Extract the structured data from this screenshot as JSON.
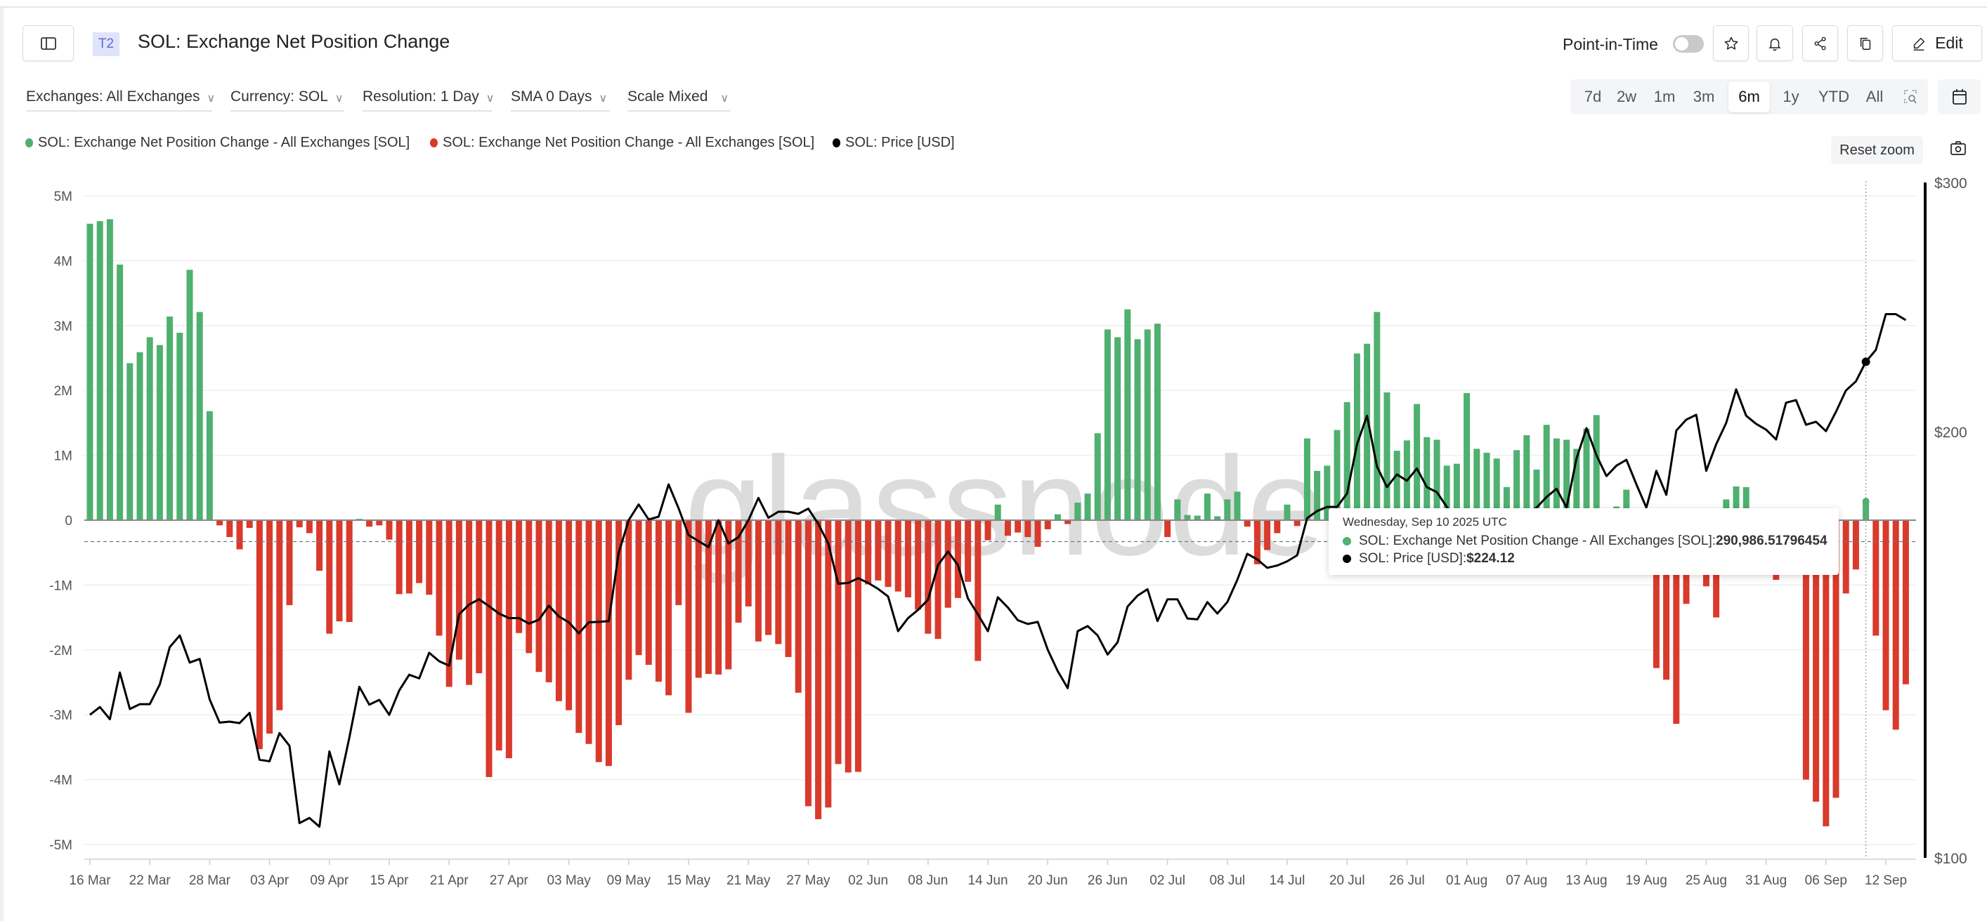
{
  "header": {
    "badge": "T2",
    "title": "SOL: Exchange Net Position Change",
    "point_in_time_label": "Point-in-Time",
    "point_in_time_on": false,
    "edit_label": "Edit",
    "icons": [
      "sidebar-toggle-icon",
      "star-icon",
      "bell-icon",
      "share-icon",
      "copy-icon",
      "pencil-icon"
    ]
  },
  "filters": [
    {
      "label": "Exchanges: All Exchanges"
    },
    {
      "label": "Currency: SOL"
    },
    {
      "label": "Resolution: 1 Day"
    },
    {
      "label": "SMA 0 Days"
    },
    {
      "label": "Scale Mixed"
    }
  ],
  "ranges": {
    "options": [
      "7d",
      "2w",
      "1m",
      "3m",
      "6m",
      "1y",
      "YTD",
      "All"
    ],
    "selected": "6m"
  },
  "reset_zoom_label": "Reset zoom",
  "legend": [
    {
      "label": "SOL: Exchange Net Position Change - All Exchanges [SOL]",
      "color": "#4fb070"
    },
    {
      "label": "SOL: Exchange Net Position Change - All Exchanges [SOL]",
      "color": "#d93a2b"
    },
    {
      "label": "SOL: Price [USD]",
      "color": "#000000"
    }
  ],
  "watermark": "glassnode",
  "tooltip": {
    "date": "Wednesday, Sep 10 2025 UTC",
    "row1_label": "SOL: Exchange Net Position Change - All Exchanges [SOL]: ",
    "row1_value": "290,986.51796454",
    "row2_label": "SOL: Price [USD]: ",
    "row2_value": "$224.12"
  },
  "chart_data": {
    "type": "bar",
    "positive_color": "#4fb070",
    "negative_color": "#d93a2b",
    "line_color": "#000000",
    "grid": true,
    "left_axis": {
      "ticks": [
        5000000,
        4000000,
        3000000,
        2000000,
        1000000,
        0,
        -1000000,
        -2000000,
        -3000000,
        -4000000,
        -5000000
      ],
      "tick_labels": [
        "5M",
        "4M",
        "3M",
        "2M",
        "1M",
        "0",
        "-1M",
        "-2M",
        "-3M",
        "-4M",
        "-5M"
      ],
      "range": [
        -5000000,
        5000000
      ]
    },
    "right_axis": {
      "scale": "log",
      "ticks": [
        300,
        200,
        100
      ],
      "tick_labels": [
        "$300",
        "$200",
        "$100"
      ],
      "range": [
        100,
        300
      ]
    },
    "x_tick_labels": [
      "16 Mar",
      "22 Mar",
      "28 Mar",
      "03 Apr",
      "09 Apr",
      "15 Apr",
      "21 Apr",
      "27 Apr",
      "03 May",
      "09 May",
      "15 May",
      "21 May",
      "27 May",
      "02 Jun",
      "08 Jun",
      "14 Jun",
      "20 Jun",
      "26 Jun",
      "02 Jul",
      "08 Jul",
      "14 Jul",
      "20 Jul",
      "26 Jul",
      "01 Aug",
      "07 Aug",
      "13 Aug",
      "19 Aug",
      "25 Aug",
      "31 Aug",
      "06 Sep",
      "12 Sep"
    ],
    "dashed_reference_value": -330000,
    "highlighted_date": "2025-09-10",
    "dates": [
      "2025-03-16",
      "2025-03-17",
      "2025-03-18",
      "2025-03-19",
      "2025-03-20",
      "2025-03-21",
      "2025-03-22",
      "2025-03-23",
      "2025-03-24",
      "2025-03-25",
      "2025-03-26",
      "2025-03-27",
      "2025-03-28",
      "2025-03-29",
      "2025-03-30",
      "2025-03-31",
      "2025-04-01",
      "2025-04-02",
      "2025-04-03",
      "2025-04-04",
      "2025-04-05",
      "2025-04-06",
      "2025-04-07",
      "2025-04-08",
      "2025-04-09",
      "2025-04-10",
      "2025-04-11",
      "2025-04-12",
      "2025-04-13",
      "2025-04-14",
      "2025-04-15",
      "2025-04-16",
      "2025-04-17",
      "2025-04-18",
      "2025-04-19",
      "2025-04-20",
      "2025-04-21",
      "2025-04-22",
      "2025-04-23",
      "2025-04-24",
      "2025-04-25",
      "2025-04-26",
      "2025-04-27",
      "2025-04-28",
      "2025-04-29",
      "2025-04-30",
      "2025-05-01",
      "2025-05-02",
      "2025-05-03",
      "2025-05-04",
      "2025-05-05",
      "2025-05-06",
      "2025-05-07",
      "2025-05-08",
      "2025-05-09",
      "2025-05-10",
      "2025-05-11",
      "2025-05-12",
      "2025-05-13",
      "2025-05-14",
      "2025-05-15",
      "2025-05-16",
      "2025-05-17",
      "2025-05-18",
      "2025-05-19",
      "2025-05-20",
      "2025-05-21",
      "2025-05-22",
      "2025-05-23",
      "2025-05-24",
      "2025-05-25",
      "2025-05-26",
      "2025-05-27",
      "2025-05-28",
      "2025-05-29",
      "2025-05-30",
      "2025-05-31",
      "2025-06-01",
      "2025-06-02",
      "2025-06-03",
      "2025-06-04",
      "2025-06-05",
      "2025-06-06",
      "2025-06-07",
      "2025-06-08",
      "2025-06-09",
      "2025-06-10",
      "2025-06-11",
      "2025-06-12",
      "2025-06-13",
      "2025-06-14",
      "2025-06-15",
      "2025-06-16",
      "2025-06-17",
      "2025-06-18",
      "2025-06-19",
      "2025-06-20",
      "2025-06-21",
      "2025-06-22",
      "2025-06-23",
      "2025-06-24",
      "2025-06-25",
      "2025-06-26",
      "2025-06-27",
      "2025-06-28",
      "2025-06-29",
      "2025-06-30",
      "2025-07-01",
      "2025-07-02",
      "2025-07-03",
      "2025-07-04",
      "2025-07-05",
      "2025-07-06",
      "2025-07-07",
      "2025-07-08",
      "2025-07-09",
      "2025-07-10",
      "2025-07-11",
      "2025-07-12",
      "2025-07-13",
      "2025-07-14",
      "2025-07-15",
      "2025-07-16",
      "2025-07-17",
      "2025-07-18",
      "2025-07-19",
      "2025-07-20",
      "2025-07-21",
      "2025-07-22",
      "2025-07-23",
      "2025-07-24",
      "2025-07-25",
      "2025-07-26",
      "2025-07-27",
      "2025-07-28",
      "2025-07-29",
      "2025-07-30",
      "2025-07-31",
      "2025-08-01",
      "2025-08-02",
      "2025-08-03",
      "2025-08-04",
      "2025-08-05",
      "2025-08-06",
      "2025-08-07",
      "2025-08-08",
      "2025-08-09",
      "2025-08-10",
      "2025-08-11",
      "2025-08-12",
      "2025-08-13",
      "2025-08-14",
      "2025-08-15",
      "2025-08-16",
      "2025-08-17",
      "2025-08-18",
      "2025-08-19",
      "2025-08-20",
      "2025-08-21",
      "2025-08-22",
      "2025-08-23",
      "2025-08-24",
      "2025-08-25",
      "2025-08-26",
      "2025-08-27",
      "2025-08-28",
      "2025-08-29",
      "2025-08-30",
      "2025-08-31",
      "2025-09-01",
      "2025-09-02",
      "2025-09-03",
      "2025-09-04",
      "2025-09-05",
      "2025-09-06",
      "2025-09-07",
      "2025-09-08",
      "2025-09-09",
      "2025-09-10",
      "2025-09-11",
      "2025-09-12",
      "2025-09-13",
      "2025-09-14"
    ],
    "net_position_change": [
      4570000,
      4610000,
      4640000,
      3940000,
      2420000,
      2590000,
      2820000,
      2700000,
      3140000,
      2890000,
      3860000,
      3210000,
      1680000,
      -80000,
      -260000,
      -450000,
      -120000,
      -3530000,
      -3290000,
      -2930000,
      -1310000,
      -110000,
      -200000,
      -780000,
      -1750000,
      -1560000,
      -1570000,
      20000,
      -100000,
      -80000,
      -300000,
      -1140000,
      -1130000,
      -970000,
      -1150000,
      -1780000,
      -2570000,
      -2150000,
      -2540000,
      -2360000,
      -3960000,
      -3550000,
      -3670000,
      -1740000,
      -2050000,
      -2340000,
      -2500000,
      -2790000,
      -2930000,
      -3280000,
      -3450000,
      -3730000,
      -3790000,
      -3160000,
      -2460000,
      -2080000,
      -2230000,
      -2490000,
      -2700000,
      -1310000,
      -2970000,
      -2430000,
      -2370000,
      -2380000,
      -2300000,
      -1580000,
      -1330000,
      -1870000,
      -1770000,
      -1910000,
      -2110000,
      -2660000,
      -4410000,
      -4610000,
      -4430000,
      -3760000,
      -3890000,
      -3880000,
      -990000,
      -930000,
      -1030000,
      -1100000,
      -1190000,
      -1380000,
      -1750000,
      -1830000,
      -1350000,
      -1200000,
      -950000,
      -2170000,
      -310000,
      240000,
      -240000,
      -190000,
      -260000,
      -410000,
      -140000,
      90000,
      -60000,
      270000,
      410000,
      1340000,
      2940000,
      2820000,
      3250000,
      2790000,
      2940000,
      3030000,
      -260000,
      320000,
      80000,
      70000,
      410000,
      60000,
      320000,
      440000,
      -100000,
      -680000,
      -460000,
      -200000,
      240000,
      -90000,
      1260000,
      760000,
      840000,
      1390000,
      1820000,
      2570000,
      2720000,
      3210000,
      1970000,
      1070000,
      1230000,
      1790000,
      1280000,
      1240000,
      840000,
      870000,
      1960000,
      1100000,
      1040000,
      950000,
      510000,
      1080000,
      1310000,
      780000,
      1470000,
      1260000,
      1240000,
      1100000,
      1410000,
      1620000,
      50000,
      210000,
      470000,
      100000,
      -300000,
      -2280000,
      -2460000,
      -3140000,
      -1290000,
      -550000,
      -1020000,
      -1500000,
      320000,
      520000,
      510000,
      -100000,
      50000,
      -920000,
      -480000,
      -200000,
      -4000000,
      -4340000,
      -4720000,
      -4280000,
      -1130000,
      -760000,
      290986.52,
      -1780000,
      -2930000,
      -3230000,
      -2530000
    ],
    "price_usd": [
      126.2,
      127.8,
      125.3,
      135.2,
      127.4,
      128.4,
      128.4,
      132.6,
      140.9,
      143.6,
      137.4,
      138.2,
      129.4,
      124.6,
      124.8,
      124.5,
      126.6,
      117.3,
      117.0,
      122.5,
      120.0,
      105.8,
      106.7,
      105.2,
      118.9,
      112.7,
      121.6,
      132.1,
      128.3,
      129.3,
      126.2,
      131.3,
      134.7,
      133.9,
      139.6,
      137.7,
      136.7,
      148.6,
      151.0,
      152.3,
      150.6,
      148.8,
      147.7,
      147.7,
      146.4,
      147.3,
      150.7,
      148.1,
      146.7,
      144.1,
      146.7,
      146.8,
      147.0,
      164.3,
      173.2,
      177.7,
      173.4,
      174.2,
      183.6,
      176.6,
      169.1,
      167.4,
      165.8,
      173.2,
      166.8,
      168.5,
      173.2,
      179.6,
      173.9,
      175.6,
      175.6,
      175.0,
      176.5,
      172.2,
      166.8,
      156.2,
      156.4,
      157.6,
      156.4,
      154.9,
      153.0,
      144.6,
      147.7,
      149.7,
      152.2,
      161.0,
      164.6,
      161.0,
      152.5,
      148.6,
      144.6,
      152.8,
      150.3,
      147.2,
      146.3,
      146.8,
      140.3,
      135.5,
      131.8,
      144.6,
      145.8,
      143.6,
      139.2,
      142.0,
      150.5,
      153.2,
      154.8,
      147.0,
      152.3,
      152.3,
      147.6,
      147.4,
      151.6,
      148.8,
      151.6,
      157.2,
      164.0,
      162.5,
      160.3,
      160.9,
      162.0,
      163.6,
      173.8,
      175.8,
      177.0,
      177.0,
      180.9,
      196.0,
      205.3,
      189.0,
      182.8,
      186.6,
      184.7,
      188.4,
      182.8,
      181.3,
      177.0,
      173.0,
      167.0,
      163.0,
      164.0,
      169.0,
      165.0,
      170.0,
      175.0,
      176.8,
      179.9,
      182.3,
      176.8,
      191.5,
      201.2,
      192.5,
      186.1,
      189.3,
      191.1,
      183.6,
      176.8,
      187.7,
      180.5,
      200.4,
      204.0,
      205.6,
      187.7,
      196.0,
      202.9,
      214.3,
      205.3,
      202.6,
      200.7,
      197.5,
      209.7,
      210.6,
      202.3,
      203.3,
      200.2,
      206.6,
      213.9,
      217.1,
      224.12,
      228.5,
      242.2,
      242.2,
      239.9
    ]
  }
}
